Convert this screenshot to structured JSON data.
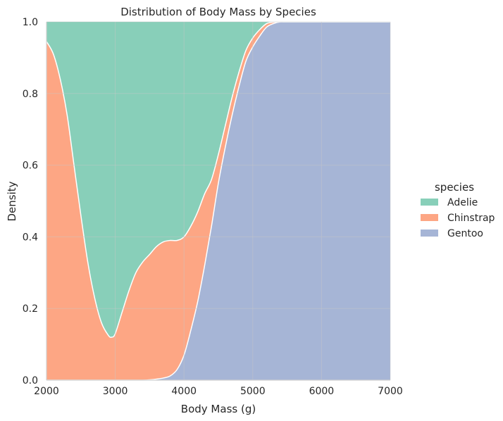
{
  "chart_data": {
    "type": "area",
    "stacking": "fill",
    "title": "Distribution of Body Mass by Species",
    "xlabel": "Body Mass (g)",
    "ylabel": "Density",
    "xlim": [
      2000,
      7000
    ],
    "ylim": [
      0,
      1
    ],
    "x_ticks": [
      2000,
      3000,
      4000,
      5000,
      6000,
      7000
    ],
    "y_ticks": [
      0.0,
      0.2,
      0.4,
      0.6,
      0.8,
      1.0
    ],
    "x_tick_labels": [
      "2000",
      "3000",
      "4000",
      "5000",
      "6000",
      "7000"
    ],
    "y_tick_labels": [
      "0.0",
      "0.2",
      "0.4",
      "0.6",
      "0.8",
      "1.0"
    ],
    "grid": true,
    "legend": {
      "title": "species",
      "placement": "right"
    },
    "x": [
      2000,
      2100,
      2200,
      2300,
      2400,
      2500,
      2600,
      2700,
      2800,
      2900,
      2950,
      3000,
      3100,
      3200,
      3300,
      3400,
      3500,
      3600,
      3700,
      3800,
      3900,
      4000,
      4100,
      4200,
      4300,
      4400,
      4500,
      4600,
      4700,
      4800,
      4900,
      5000,
      5100,
      5200,
      5300,
      5400,
      5500,
      6000,
      6500,
      7000
    ],
    "series": [
      {
        "name": "Gentoo",
        "color": "#8da0cb",
        "values": [
          0,
          0,
          0,
          0,
          0,
          0,
          0,
          0,
          0,
          0,
          0,
          0,
          0,
          0,
          0,
          0,
          0.001,
          0.003,
          0.006,
          0.012,
          0.03,
          0.07,
          0.14,
          0.22,
          0.32,
          0.43,
          0.55,
          0.65,
          0.74,
          0.82,
          0.89,
          0.93,
          0.96,
          0.985,
          0.995,
          1,
          1,
          1,
          1,
          1
        ]
      },
      {
        "name": "Chinstrap",
        "color": "#fc8d62",
        "values": [
          0.945,
          0.91,
          0.84,
          0.74,
          0.6,
          0.46,
          0.33,
          0.23,
          0.16,
          0.125,
          0.12,
          0.13,
          0.19,
          0.25,
          0.3,
          0.33,
          0.35,
          0.37,
          0.38,
          0.378,
          0.36,
          0.33,
          0.29,
          0.25,
          0.2,
          0.13,
          0.08,
          0.06,
          0.05,
          0.04,
          0.03,
          0.025,
          0.018,
          0.01,
          0.004,
          0,
          0,
          0,
          0,
          0
        ]
      },
      {
        "name": "Adelie",
        "color": "#66c2a5",
        "values": [
          0.055,
          0.09,
          0.16,
          0.26,
          0.4,
          0.54,
          0.67,
          0.77,
          0.84,
          0.875,
          0.88,
          0.87,
          0.81,
          0.75,
          0.7,
          0.67,
          0.649,
          0.627,
          0.614,
          0.61,
          0.61,
          0.6,
          0.57,
          0.53,
          0.48,
          0.44,
          0.37,
          0.29,
          0.21,
          0.14,
          0.08,
          0.045,
          0.022,
          0.005,
          0.001,
          0,
          0,
          0,
          0,
          0
        ]
      }
    ],
    "legend_order": [
      "Adelie",
      "Chinstrap",
      "Gentoo"
    ]
  }
}
